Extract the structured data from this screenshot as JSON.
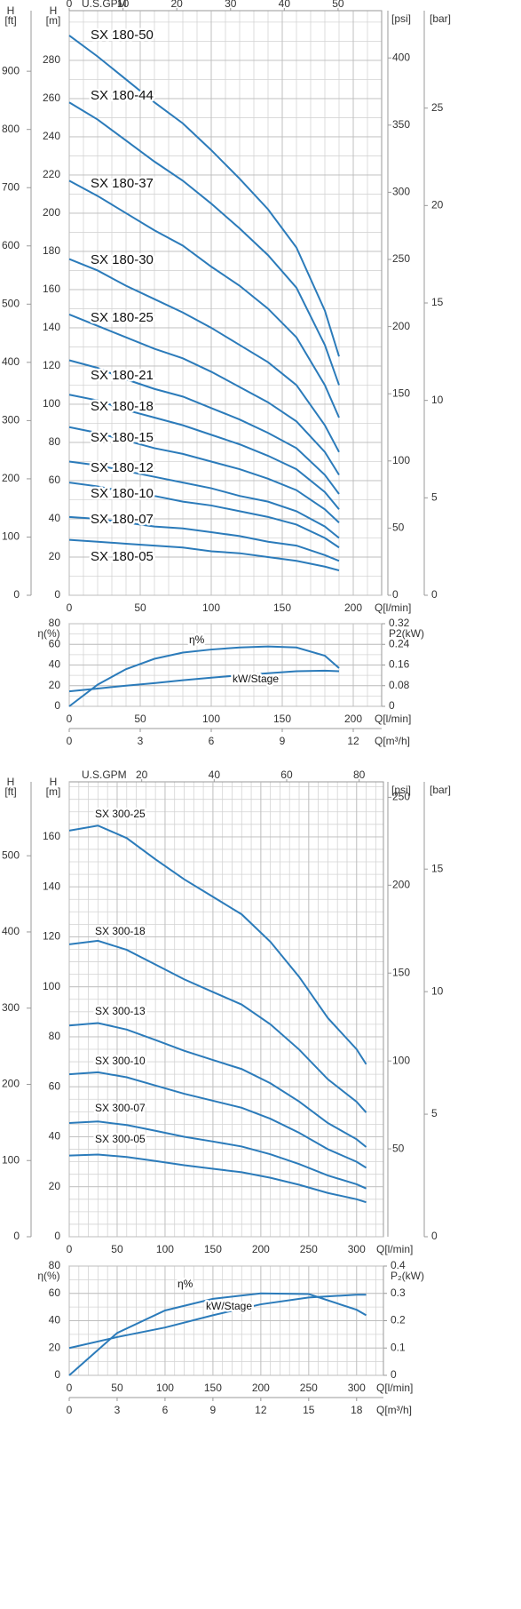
{
  "chart_data": [
    {
      "type": "line",
      "y_label": {
        "symbol": "H",
        "unit": "[m]"
      },
      "x_label": "Q[l/min]",
      "xlim": [
        0,
        220
      ],
      "xticks": [
        0,
        50,
        100,
        150,
        200
      ],
      "ylim": [
        0,
        306
      ],
      "yticks": [
        0,
        20,
        40,
        60,
        80,
        100,
        120,
        140,
        160,
        180,
        200,
        220,
        240,
        260,
        280
      ],
      "grid": true,
      "minor_grid": {
        "x": 10,
        "y": 10
      },
      "axes": [
        {
          "position": "left-outer",
          "symbol": "H",
          "unit": "[ft]",
          "lim": [
            0,
            1004
          ],
          "ticks": [
            0,
            100,
            200,
            300,
            400,
            500,
            600,
            700,
            800,
            900
          ]
        },
        {
          "position": "right",
          "unit": "[psi]",
          "lim": [
            0,
            435.2
          ],
          "ticks": [
            0,
            50,
            100,
            150,
            200,
            250,
            300,
            350,
            400
          ]
        },
        {
          "position": "right-outer",
          "unit": "[bar]",
          "lim": [
            0,
            30
          ],
          "ticks": [
            0,
            5,
            10,
            15,
            20,
            25
          ]
        },
        {
          "position": "top",
          "unit": "U.S.GPM",
          "lim": [
            0,
            58.1
          ],
          "ticks": [
            0,
            10,
            20,
            30,
            40,
            50
          ]
        }
      ],
      "x": [
        0,
        20,
        40,
        60,
        80,
        100,
        120,
        140,
        160,
        180,
        190
      ],
      "series": [
        {
          "name": "SX 180-50",
          "color": "#2b7bba",
          "values": [
            293,
            282,
            270,
            258,
            247,
            233,
            218,
            202,
            182,
            149,
            125
          ]
        },
        {
          "name": "SX 180-44",
          "color": "#2b7bba",
          "values": [
            258,
            249,
            238,
            227,
            217,
            205,
            192,
            178,
            161,
            131,
            110
          ]
        },
        {
          "name": "SX 180-37",
          "color": "#2b7bba",
          "values": [
            217,
            209,
            200,
            191,
            183,
            172,
            162,
            150,
            135,
            110,
            93
          ]
        },
        {
          "name": "SX 180-30",
          "color": "#2b7bba",
          "values": [
            176,
            170,
            162,
            155,
            148,
            140,
            131,
            122,
            110,
            89,
            75
          ]
        },
        {
          "name": "SX 180-25",
          "color": "#2b7bba",
          "values": [
            147,
            141,
            135,
            129,
            124,
            117,
            109,
            101,
            91,
            75,
            63
          ]
        },
        {
          "name": "SX 180-21",
          "color": "#2b7bba",
          "values": [
            123,
            119,
            113,
            108,
            104,
            98,
            92,
            85,
            77,
            63,
            53
          ]
        },
        {
          "name": "SX 180-18",
          "color": "#2b7bba",
          "values": [
            105,
            102,
            97,
            93,
            89,
            84,
            79,
            73,
            66,
            54,
            45
          ]
        },
        {
          "name": "SX 180-15",
          "color": "#2b7bba",
          "values": [
            88,
            85,
            81,
            77,
            74,
            70,
            66,
            61,
            55,
            45,
            38
          ]
        },
        {
          "name": "SX 180-12",
          "color": "#2b7bba",
          "values": [
            70,
            68,
            65,
            62,
            59,
            56,
            52,
            49,
            44,
            36,
            30
          ]
        },
        {
          "name": "SX 180-10",
          "color": "#2b7bba",
          "values": [
            59,
            57,
            54,
            52,
            49,
            47,
            44,
            41,
            37,
            30,
            25
          ]
        },
        {
          "name": "SX 180-07",
          "color": "#2b7bba",
          "values": [
            41,
            40,
            38,
            36,
            35,
            33,
            31,
            28,
            26,
            21,
            18
          ]
        },
        {
          "name": "SX 180-05",
          "color": "#2b7bba",
          "values": [
            29,
            28,
            27,
            26,
            25,
            23,
            22,
            20,
            18,
            15,
            13
          ]
        }
      ]
    },
    {
      "type": "line",
      "y_label": "η(%)",
      "y2_label": "P2(kW)",
      "x_label": "Q[l/min]",
      "xlim": [
        0,
        220
      ],
      "xticks": [
        0,
        50,
        100,
        150,
        200
      ],
      "ylim": [
        0,
        80
      ],
      "yticks": [
        0,
        20,
        40,
        60,
        80
      ],
      "y2lim": [
        0,
        0.32
      ],
      "y2ticks": [
        0,
        0.08,
        0.16,
        0.24,
        0.32
      ],
      "grid": true,
      "minor_grid": {
        "x": 10,
        "y": 10
      },
      "axes": [
        {
          "position": "bottom-outer",
          "unit": "Q[m³/h]",
          "lim": [
            0,
            13.2
          ],
          "ticks": [
            0,
            3,
            6,
            9,
            12
          ]
        }
      ],
      "x": [
        0,
        20,
        40,
        60,
        80,
        100,
        120,
        140,
        160,
        180,
        190
      ],
      "series": [
        {
          "name": "η%",
          "color": "#2b7bba",
          "values": [
            0,
            21,
            36,
            46,
            52,
            55,
            57,
            58,
            57,
            49,
            37
          ]
        },
        {
          "name": "kW/Stage",
          "color": "#2b7bba",
          "axis": "y2",
          "values": [
            0.058,
            0.069,
            0.08,
            0.09,
            0.101,
            0.111,
            0.12,
            0.128,
            0.136,
            0.138,
            0.136
          ]
        }
      ]
    },
    {
      "type": "line",
      "y_label": {
        "symbol": "H",
        "unit": "[m]"
      },
      "x_label": "Q[l/min]",
      "xlim": [
        0,
        328
      ],
      "xticks": [
        0,
        50,
        100,
        150,
        200,
        250,
        300
      ],
      "ylim": [
        0,
        182
      ],
      "yticks": [
        0,
        20,
        40,
        60,
        80,
        100,
        120,
        140,
        160
      ],
      "grid": true,
      "minor_grid": {
        "x": 10,
        "y": 5
      },
      "axes": [
        {
          "position": "left-outer",
          "symbol": "H",
          "unit": "[ft]",
          "lim": [
            0,
            597
          ],
          "ticks": [
            0,
            100,
            200,
            300,
            400,
            500
          ]
        },
        {
          "position": "right",
          "unit": "[psi]",
          "lim": [
            0,
            258.8
          ],
          "ticks": [
            50,
            100,
            150,
            200,
            250
          ]
        },
        {
          "position": "right-outer",
          "unit": "[bar]",
          "lim": [
            0,
            18.56
          ],
          "ticks": [
            0,
            5,
            10,
            15
          ]
        },
        {
          "position": "top",
          "unit": "U.S.GPM",
          "lim": [
            0,
            86.7
          ],
          "ticks": [
            20,
            40,
            60,
            80
          ]
        }
      ],
      "x": [
        0,
        30,
        60,
        90,
        120,
        150,
        180,
        210,
        240,
        270,
        300,
        310
      ],
      "series": [
        {
          "name": "SX 300-25",
          "color": "#2b7bba",
          "values": [
            162.5,
            164.5,
            159.5,
            151,
            143,
            136,
            129,
            118,
            104,
            87.5,
            75,
            69
          ]
        },
        {
          "name": "SX 300-18",
          "color": "#2b7bba",
          "values": [
            117,
            118.4,
            114.8,
            108.9,
            103,
            97.9,
            92.9,
            85,
            74.9,
            63,
            54,
            49.7
          ]
        },
        {
          "name": "SX 300-13",
          "color": "#2b7bba",
          "values": [
            84.5,
            85.5,
            82.9,
            78.7,
            74.4,
            70.7,
            67.1,
            61.4,
            54.1,
            45.5,
            39,
            35.9
          ]
        },
        {
          "name": "SX 300-10",
          "color": "#2b7bba",
          "values": [
            65,
            65.8,
            63.8,
            60.5,
            57.2,
            54.4,
            51.6,
            47.2,
            41.6,
            35,
            30,
            27.6
          ]
        },
        {
          "name": "SX 300-07",
          "color": "#2b7bba",
          "values": [
            45.5,
            46.1,
            44.7,
            42.4,
            40,
            38.1,
            36.1,
            33,
            29.1,
            24.5,
            21,
            19.3
          ]
        },
        {
          "name": "SX 300-05",
          "color": "#2b7bba",
          "values": [
            32.5,
            32.9,
            31.9,
            30.3,
            28.6,
            27.2,
            25.8,
            23.6,
            20.8,
            17.5,
            15,
            13.8
          ]
        }
      ]
    },
    {
      "type": "line",
      "y_label": "η(%)",
      "y2_label": "P₂(kW)",
      "x_label": "Q[l/min]",
      "xlim": [
        0,
        328
      ],
      "xticks": [
        0,
        50,
        100,
        150,
        200,
        250,
        300
      ],
      "ylim": [
        0,
        80
      ],
      "yticks": [
        0,
        20,
        40,
        60,
        80
      ],
      "y2lim": [
        0,
        0.4
      ],
      "y2ticks": [
        0,
        0.1,
        0.2,
        0.3,
        0.4
      ],
      "grid": true,
      "minor_grid": {
        "x": 10,
        "y": 10
      },
      "axes": [
        {
          "position": "bottom-outer",
          "unit": "Q[m³/h]",
          "lim": [
            0,
            19.68
          ],
          "ticks": [
            0,
            3,
            6,
            9,
            12,
            15,
            18
          ]
        }
      ],
      "x": [
        0,
        50,
        100,
        150,
        200,
        250,
        300,
        310
      ],
      "series": [
        {
          "name": "η%",
          "color": "#2b7bba",
          "values": [
            0,
            31,
            47.5,
            56,
            60,
            59.5,
            48,
            44
          ]
        },
        {
          "name": "kW/Stage",
          "color": "#2b7bba",
          "axis": "y2",
          "values": [
            0.1,
            0.14,
            0.175,
            0.22,
            0.26,
            0.285,
            0.295,
            0.295
          ]
        }
      ]
    }
  ]
}
